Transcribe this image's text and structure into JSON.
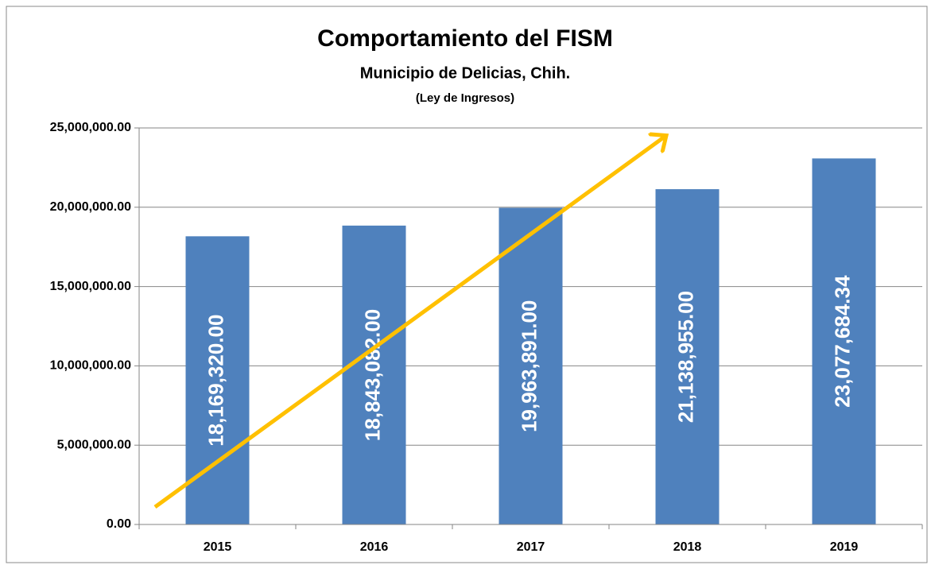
{
  "chart_data": {
    "type": "bar",
    "title": "Comportamiento del FISM",
    "subtitle": "Municipio de Delicias, Chih.",
    "subtitle2": "(Ley de Ingresos)",
    "categories": [
      "2015",
      "2016",
      "2017",
      "2018",
      "2019"
    ],
    "values": [
      18169320,
      18843082,
      19963891,
      21138955,
      23077684.34
    ],
    "value_labels": [
      "18,169,320.00",
      "18,843,082.00",
      "19,963,891.00",
      "21,138,955.00",
      "23,077,684.34"
    ],
    "color": "#4f81bd",
    "ylim": [
      0,
      25000000
    ],
    "yticks": [
      {
        "value": 0,
        "label": "0.00"
      },
      {
        "value": 5000000,
        "label": "5,000,000.00"
      },
      {
        "value": 10000000,
        "label": "10,000,000.00"
      },
      {
        "value": 15000000,
        "label": "15,000,000.00"
      },
      {
        "value": 20000000,
        "label": "20,000,000.00"
      },
      {
        "value": 25000000,
        "label": "25,000,000.00"
      }
    ],
    "grid": true
  }
}
